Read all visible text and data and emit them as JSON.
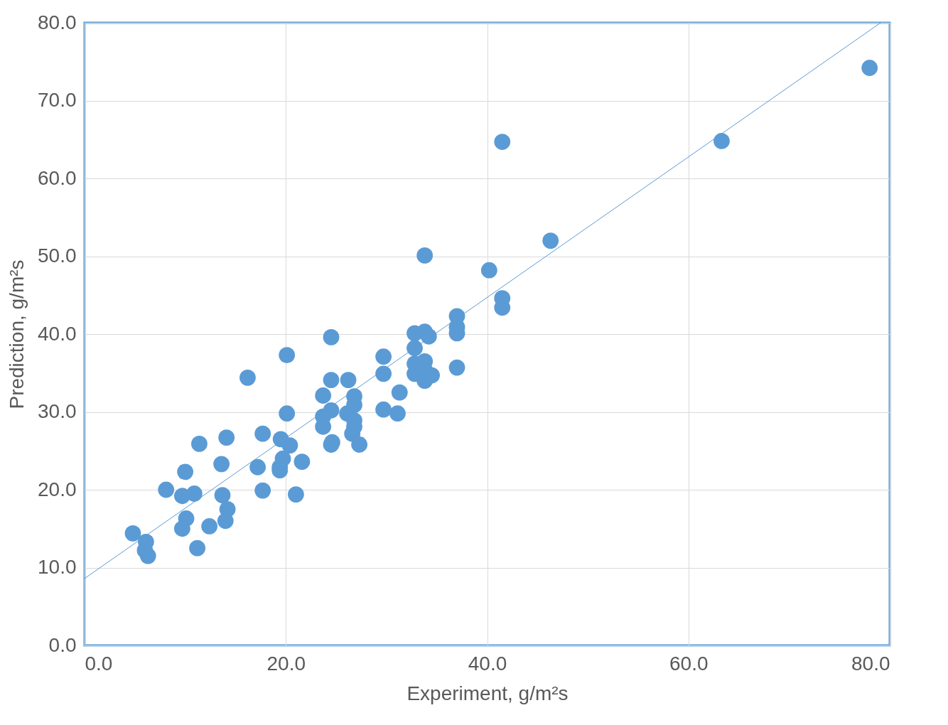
{
  "chart_data": {
    "type": "scatter",
    "xlabel": "Experiment, g/m²s",
    "ylabel": "Prediction, g/m²s",
    "xlim": [
      0,
      80
    ],
    "ylim": [
      0,
      80
    ],
    "xticks": [
      {
        "value": 0,
        "label": "0.0"
      },
      {
        "value": 20,
        "label": "20.0"
      },
      {
        "value": 40,
        "label": "40.0"
      },
      {
        "value": 60,
        "label": "60.0"
      },
      {
        "value": 80,
        "label": "80.0"
      }
    ],
    "yticks": [
      {
        "value": 0,
        "label": "0.0"
      },
      {
        "value": 10,
        "label": "10.0"
      },
      {
        "value": 20,
        "label": "20.0"
      },
      {
        "value": 30,
        "label": "30.0"
      },
      {
        "value": 40,
        "label": "40.0"
      },
      {
        "value": 50,
        "label": "50.0"
      },
      {
        "value": 60,
        "label": "60.0"
      },
      {
        "value": 70,
        "label": "70.0"
      },
      {
        "value": 80,
        "label": "80.0"
      }
    ],
    "grid": true,
    "marker": "circle",
    "series": [
      {
        "type": "scatter",
        "color": "#5b9bd5",
        "x": [
          4.8,
          6.1,
          6.0,
          6.3,
          8.1,
          10.0,
          9.7,
          10.9,
          10.1,
          9.7,
          11.2,
          11.4,
          12.4,
          13.6,
          13.7,
          14.1,
          14.2,
          14.0,
          16.2,
          17.2,
          17.7,
          17.7,
          19.5,
          20.4,
          19.7,
          19.4,
          19.4,
          20.1,
          20.1,
          21.6,
          21.0,
          24.5,
          23.7,
          24.5,
          26.2,
          23.7,
          23.7,
          24.5,
          24.6,
          24.5,
          26.8,
          26.8,
          26.1,
          26.8,
          26.8,
          26.6,
          27.3,
          29.7,
          29.7,
          29.7,
          31.3,
          31.1,
          32.8,
          32.8,
          32.8,
          32.8,
          33.8,
          34.2,
          33.8,
          33.8,
          34.5,
          33.8,
          33.8,
          37.0,
          37.0,
          37.0,
          37.0,
          40.2,
          41.5,
          41.5,
          41.5,
          46.3,
          63.3,
          78.0
        ],
        "values": [
          14.4,
          13.3,
          12.2,
          11.5,
          20.0,
          22.3,
          19.2,
          19.5,
          16.3,
          15.0,
          12.5,
          25.9,
          15.3,
          23.3,
          19.3,
          26.7,
          17.5,
          16.0,
          34.4,
          22.9,
          27.2,
          19.9,
          26.5,
          25.7,
          24.0,
          22.9,
          22.5,
          37.3,
          29.8,
          23.6,
          19.4,
          39.6,
          32.1,
          34.1,
          34.1,
          29.4,
          28.1,
          30.2,
          26.1,
          25.8,
          32.0,
          30.9,
          29.8,
          28.9,
          28.1,
          27.2,
          25.8,
          37.1,
          34.9,
          30.3,
          32.5,
          29.8,
          40.1,
          38.2,
          36.2,
          34.9,
          40.3,
          39.7,
          36.5,
          35.4,
          34.7,
          34.0,
          50.1,
          42.3,
          40.9,
          40.1,
          35.7,
          48.2,
          64.7,
          44.6,
          43.4,
          52.0,
          64.8,
          74.2
        ]
      },
      {
        "type": "line",
        "marker": "none",
        "color": "#5b9bd5",
        "x": [
          0,
          79.1
        ],
        "values": [
          8.6,
          80
        ]
      }
    ]
  }
}
